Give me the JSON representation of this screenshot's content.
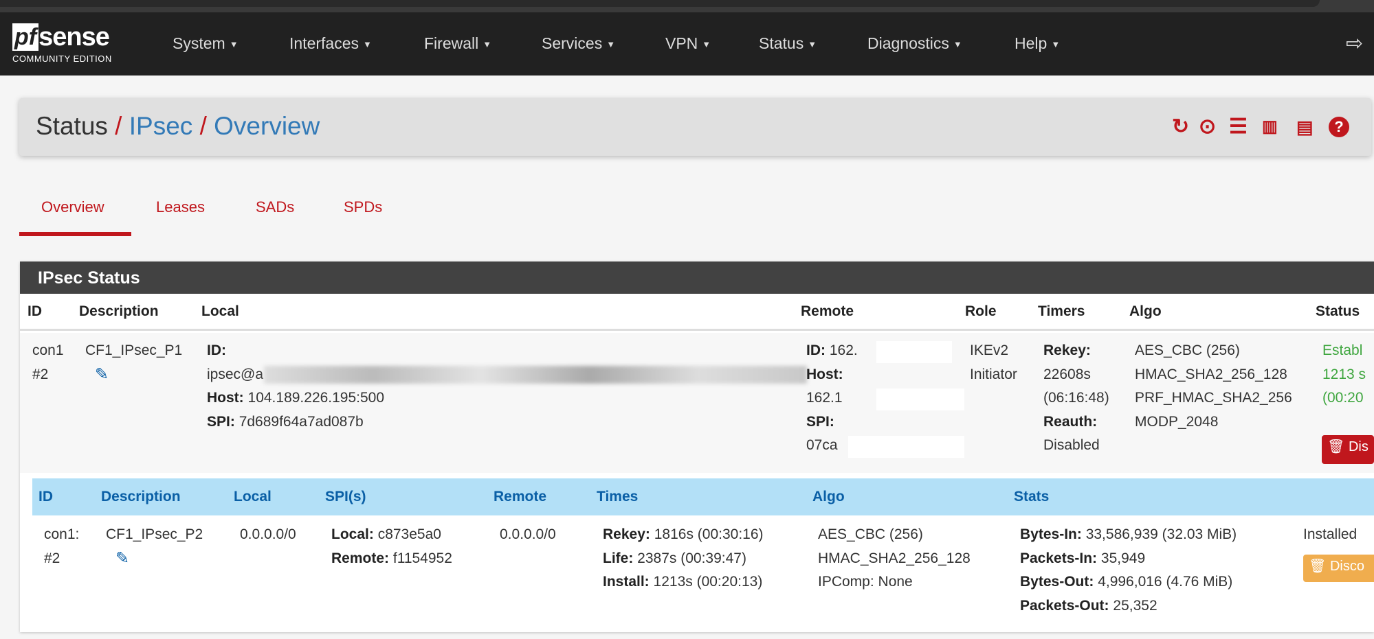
{
  "brand": {
    "logo_pf": "pf",
    "logo_sense": "sense",
    "edition": "COMMUNITY EDITION"
  },
  "nav": [
    "System",
    "Interfaces",
    "Firewall",
    "Services",
    "VPN",
    "Status",
    "Diagnostics",
    "Help"
  ],
  "breadcrumb": [
    "Status",
    "IPsec",
    "Overview"
  ],
  "tabs": [
    "Overview",
    "Leases",
    "SADs",
    "SPDs"
  ],
  "active_tab": "Overview",
  "panel": {
    "title": "IPsec Status"
  },
  "p1": {
    "headers": [
      "ID",
      "Description",
      "Local",
      "Remote",
      "Role",
      "Timers",
      "Algo",
      "Status"
    ],
    "id": [
      "con1",
      "#2"
    ],
    "description": "CF1_IPsec_P1",
    "local": {
      "id_label": "ID:",
      "id_value": "ipsec@a",
      "host_label": "Host:",
      "host_value": "104.189.226.195:500",
      "spi_label": "SPI:",
      "spi_value": "7d689f64a7ad087b"
    },
    "remote": {
      "id_label": "ID:",
      "id_value": "162.",
      "host_label": "Host:",
      "host_value": "162.1",
      "spi_label": "SPI:",
      "spi_value": "07ca"
    },
    "role": [
      "IKEv2",
      "Initiator"
    ],
    "timers": {
      "rekey_label": "Rekey:",
      "rekey_value": "22608s",
      "rekey_hms": "(06:16:48)",
      "reauth_label": "Reauth:",
      "reauth_value": "Disabled"
    },
    "algo": [
      "AES_CBC (256)",
      "HMAC_SHA2_256_128",
      "PRF_HMAC_SHA2_256",
      "MODP_2048"
    ],
    "status": [
      "Establ",
      "1213 s",
      "(00:20"
    ],
    "disconnect": "Dis"
  },
  "p2": {
    "headers": [
      "ID",
      "Description",
      "Local",
      "SPI(s)",
      "Remote",
      "Times",
      "Algo",
      "Stats"
    ],
    "id": [
      "con1:",
      "#2"
    ],
    "description": "CF1_IPsec_P2",
    "local": "0.0.0.0/0",
    "spi": {
      "local_label": "Local:",
      "local_value": "c873e5a0",
      "remote_label": "Remote:",
      "remote_value": "f1154952"
    },
    "remote": "0.0.0.0/0",
    "times": [
      {
        "label": "Rekey:",
        "value": "1816s (00:30:16)"
      },
      {
        "label": "Life:",
        "value": "2387s (00:39:47)"
      },
      {
        "label": "Install:",
        "value": "1213s (00:20:13)"
      }
    ],
    "algo": [
      "AES_CBC (256)",
      "HMAC_SHA2_256_128",
      "IPComp: None"
    ],
    "stats": [
      {
        "label": "Bytes-In:",
        "value": "33,586,939 (32.03 MiB)"
      },
      {
        "label": "Packets-In:",
        "value": "35,949"
      },
      {
        "label": "Bytes-Out:",
        "value": "4,996,016 (4.76 MiB)"
      },
      {
        "label": "Packets-Out:",
        "value": "25,352"
      }
    ],
    "status": "Installed",
    "disconnect": "Disco"
  },
  "colors": {
    "accent": "#c0171d",
    "link": "#337ab7",
    "established": "#3fa63f",
    "p2_header": "#b3e0f7",
    "p2_header_text": "#0a5fa6",
    "warning": "#f0ad4e"
  }
}
